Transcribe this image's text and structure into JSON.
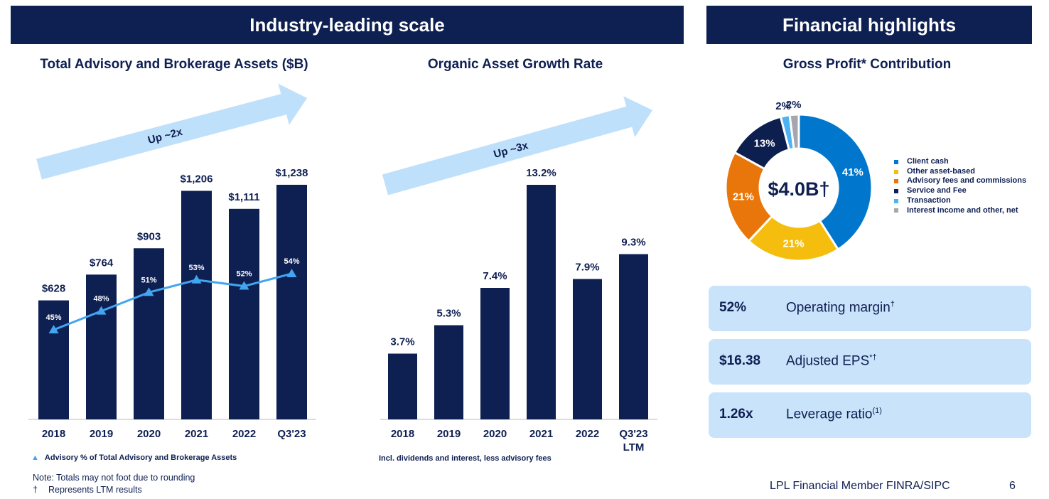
{
  "header": {
    "left": "Industry-leading scale",
    "right": "Financial highlights"
  },
  "colors": {
    "navy": "#0e1f52",
    "arrow": "#bfe0fa",
    "line": "#42a5f0",
    "kpi_bg": "#c9e3fa"
  },
  "chart_data": [
    {
      "type": "bar",
      "title": "Total Advisory and Brokerage Assets ($B)",
      "categories": [
        "2018",
        "2019",
        "2020",
        "2021",
        "2022",
        "Q3'23"
      ],
      "values": [
        628,
        764,
        903,
        1206,
        1111,
        1238
      ],
      "data_labels": [
        "$628",
        "$764",
        "$903",
        "$1,206",
        "$1,111",
        "$1,238"
      ],
      "annotation": "Up ~2x",
      "overlay_line": {
        "type": "line",
        "name": "Advisory % of Total Advisory and Brokerage Assets",
        "values": [
          45,
          48,
          51,
          53,
          52,
          54
        ],
        "data_labels": [
          "45%",
          "48%",
          "51%",
          "53%",
          "52%",
          "54%"
        ]
      },
      "legend": "Advisory % of Total Advisory and Brokerage Assets"
    },
    {
      "type": "bar",
      "title": "Organic Asset Growth Rate",
      "categories": [
        "2018",
        "2019",
        "2020",
        "2021",
        "2022",
        "Q3'23\nLTM"
      ],
      "values": [
        3.7,
        5.3,
        7.4,
        13.2,
        7.9,
        9.3
      ],
      "data_labels": [
        "3.7%",
        "5.3%",
        "7.4%",
        "13.2%",
        "7.9%",
        "9.3%"
      ],
      "annotation": "Up ~3x",
      "footnote": "Incl. dividends and interest, less advisory fees"
    },
    {
      "type": "pie",
      "title": "Gross Profit* Contribution",
      "center_label": "$4.0B†",
      "slices": [
        {
          "label": "Client cash",
          "value": 41,
          "color": "#0077cc"
        },
        {
          "label": "Other asset-based",
          "value": 21,
          "color": "#f5be0f"
        },
        {
          "label": "Advisory fees and commissions",
          "value": 21,
          "color": "#e8760a"
        },
        {
          "label": "Service and Fee",
          "value": 13,
          "color": "#0c1f4e"
        },
        {
          "label": "Transaction",
          "value": 2,
          "color": "#4db3f5"
        },
        {
          "label": "Interest income and other, net",
          "value": 2,
          "color": "#a6a6ad"
        }
      ],
      "legend": "right"
    }
  ],
  "kpis": [
    {
      "value": "52%",
      "label": "Operating margin",
      "sup": "†"
    },
    {
      "value": "$16.38",
      "label": "Adjusted EPS",
      "sup": "*†"
    },
    {
      "value": "1.26x",
      "label": "Leverage ratio",
      "sup": "(1)"
    }
  ],
  "notes": {
    "rounding": "Note: Totals may not foot due to rounding",
    "dagger": "†",
    "ltm": "Represents LTM results"
  },
  "footer": {
    "company": "LPL Financial  Member FINRA/SIPC",
    "page": "6"
  }
}
